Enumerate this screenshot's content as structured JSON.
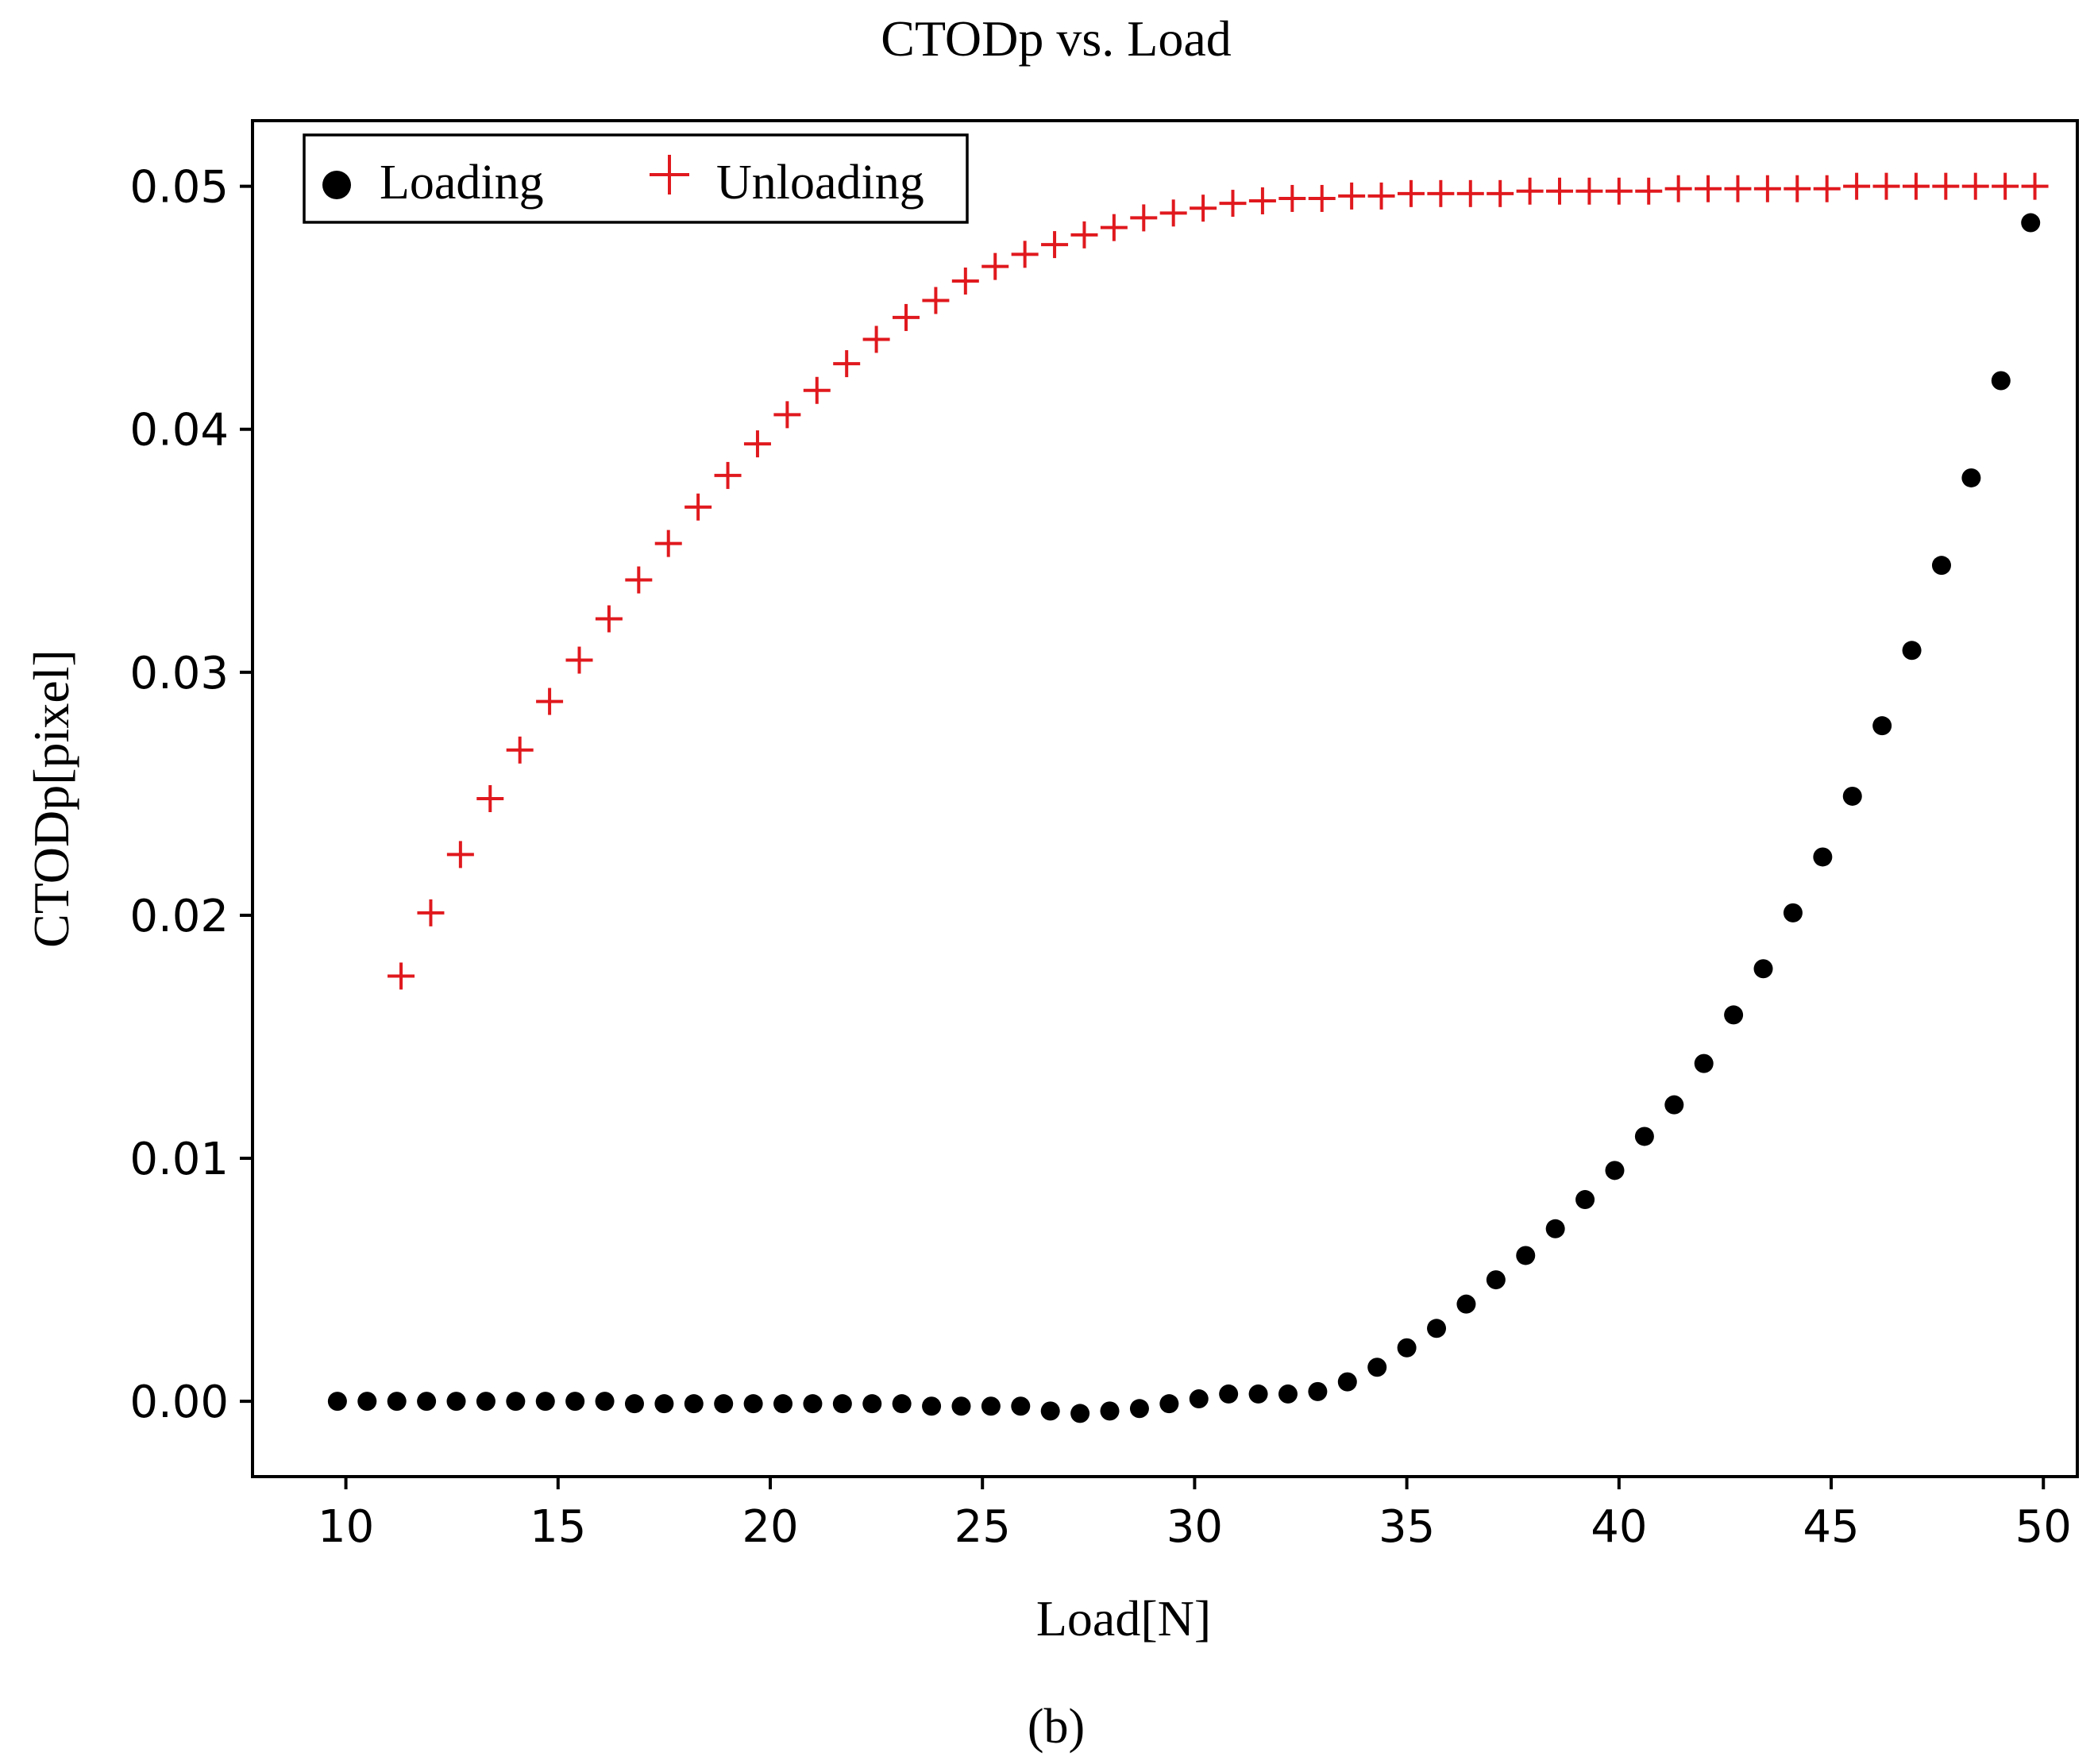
{
  "chart_data": {
    "type": "scatter",
    "title": "CTODp vs. Load",
    "xlabel": "Load[N]",
    "ylabel": "CTODp[pixel]",
    "caption": "(b)",
    "xlim": [
      7.8,
      50.8
    ],
    "ylim": [
      -0.0031,
      0.0527
    ],
    "xticks": [
      10,
      15,
      20,
      25,
      30,
      35,
      40,
      45,
      50
    ],
    "xtick_labels": [
      "10",
      "15",
      "20",
      "25",
      "30",
      "35",
      "40",
      "45",
      "50"
    ],
    "yticks": [
      0.0,
      0.01,
      0.02,
      0.03,
      0.04,
      0.05
    ],
    "ytick_labels": [
      "0.00",
      "0.01",
      "0.02",
      "0.03",
      "0.04",
      "0.05"
    ],
    "grid": false,
    "legend": {
      "position": "top-left",
      "entries": [
        "Loading",
        "Unloading"
      ]
    },
    "series": [
      {
        "name": "Loading",
        "marker": "circle",
        "color": "#000000",
        "x": [
          9.8,
          10.5,
          11.2,
          11.9,
          12.6,
          13.3,
          14.0,
          14.7,
          15.4,
          16.1,
          16.8,
          17.5,
          18.2,
          18.9,
          19.6,
          20.3,
          21.0,
          21.7,
          22.4,
          23.1,
          23.8,
          24.5,
          25.2,
          25.9,
          26.6,
          27.3,
          28.0,
          28.7,
          29.4,
          30.1,
          30.8,
          31.5,
          32.2,
          32.9,
          33.6,
          34.3,
          35.0,
          35.7,
          36.4,
          37.1,
          37.8,
          38.5,
          39.2,
          39.9,
          40.6,
          41.3,
          42.0,
          42.7,
          43.4,
          44.1,
          44.8,
          45.5,
          46.2,
          46.9,
          47.6,
          48.3,
          49.0,
          49.7
        ],
        "values": [
          0.0,
          0.0,
          0.0,
          0.0,
          0.0,
          0.0,
          0.0,
          0.0,
          0.0,
          0.0,
          -0.0001,
          -0.0001,
          -0.0001,
          -0.0001,
          -0.0001,
          -0.0001,
          -0.0001,
          -0.0001,
          -0.0001,
          -0.0001,
          -0.0002,
          -0.0002,
          -0.0002,
          -0.0002,
          -0.0004,
          -0.0005,
          -0.0004,
          -0.0003,
          -0.0001,
          0.0001,
          0.0003,
          0.0003,
          0.0003,
          0.0004,
          0.0008,
          0.0014,
          0.0022,
          0.003,
          0.004,
          0.005,
          0.006,
          0.0071,
          0.0083,
          0.0095,
          0.0109,
          0.0122,
          0.0139,
          0.0159,
          0.0178,
          0.0201,
          0.0224,
          0.0249,
          0.0278,
          0.0309,
          0.0344,
          0.038,
          0.042,
          0.0485
        ]
      },
      {
        "name": "Unloading",
        "marker": "plus",
        "color": "#e0191e",
        "x": [
          11.3,
          12.0,
          12.7,
          13.4,
          14.1,
          14.8,
          15.5,
          16.2,
          16.9,
          17.6,
          18.3,
          19.0,
          19.7,
          20.4,
          21.1,
          21.8,
          22.5,
          23.2,
          23.9,
          24.6,
          25.3,
          26.0,
          26.7,
          27.4,
          28.1,
          28.8,
          29.5,
          30.2,
          30.9,
          31.6,
          32.3,
          33.0,
          33.7,
          34.4,
          35.1,
          35.8,
          36.5,
          37.2,
          37.9,
          38.6,
          39.3,
          40.0,
          40.7,
          41.4,
          42.1,
          42.8,
          43.5,
          44.2,
          44.9,
          45.6,
          46.3,
          47.0,
          47.7,
          48.4,
          49.1,
          49.8
        ],
        "values": [
          0.0175,
          0.0201,
          0.0225,
          0.0248,
          0.0268,
          0.0288,
          0.0305,
          0.0322,
          0.0338,
          0.0353,
          0.0368,
          0.0381,
          0.0394,
          0.0406,
          0.0416,
          0.0427,
          0.0437,
          0.0446,
          0.0453,
          0.0461,
          0.0467,
          0.0472,
          0.0476,
          0.048,
          0.0483,
          0.0487,
          0.0489,
          0.0491,
          0.0493,
          0.0494,
          0.0495,
          0.0495,
          0.0496,
          0.0496,
          0.0497,
          0.0497,
          0.0497,
          0.0497,
          0.0498,
          0.0498,
          0.0498,
          0.0498,
          0.0498,
          0.0499,
          0.0499,
          0.0499,
          0.0499,
          0.0499,
          0.0499,
          0.05,
          0.05,
          0.05,
          0.05,
          0.05,
          0.05,
          0.05
        ]
      }
    ]
  }
}
